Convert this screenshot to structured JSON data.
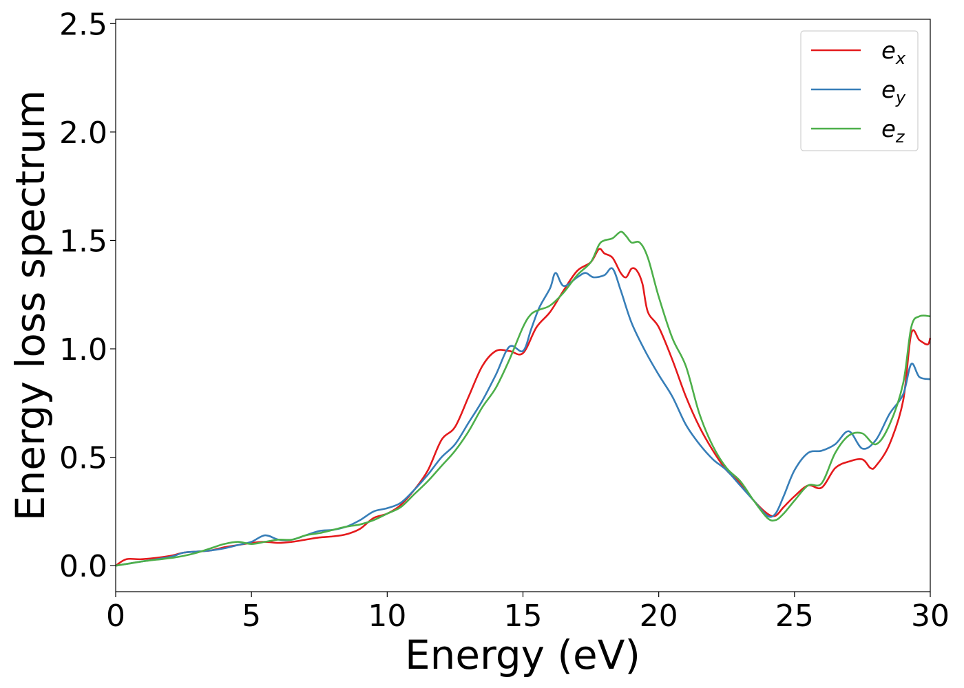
{
  "chart_data": {
    "type": "line",
    "xlabel": "Energy (eV)",
    "ylabel": "Energy loss spectrum",
    "xlim": [
      0,
      30
    ],
    "ylim": [
      -0.12,
      2.52
    ],
    "xticks": [
      "0",
      "5",
      "10",
      "15",
      "20",
      "25",
      "30"
    ],
    "yticks": [
      "0.0",
      "0.5",
      "1.0",
      "1.5",
      "2.0",
      "2.5"
    ],
    "grid": false,
    "legend_position": "top-right",
    "series": [
      {
        "name": "e",
        "subscript": "x",
        "color": "#e41a1c",
        "x": [
          0,
          0.4,
          1,
          2,
          2.5,
          3,
          3.5,
          4,
          4.5,
          5,
          5.5,
          6,
          6.5,
          7,
          7.5,
          8,
          8.5,
          9,
          9.5,
          10,
          10.5,
          11,
          11.5,
          12,
          12.5,
          13,
          13.5,
          14,
          14.5,
          15,
          15.5,
          16,
          16.5,
          17,
          17.5,
          17.8,
          18,
          18.3,
          18.6,
          18.8,
          19,
          19.2,
          19.4,
          19.6,
          20,
          20.5,
          21,
          21.5,
          22,
          22.5,
          23,
          23.5,
          24,
          24.3,
          24.6,
          25,
          25.5,
          26,
          26.5,
          27,
          27.5,
          27.8,
          28,
          28.5,
          29,
          29.3,
          29.6,
          29.9,
          30
        ],
        "values": [
          0.0,
          0.03,
          0.03,
          0.045,
          0.06,
          0.065,
          0.07,
          0.085,
          0.095,
          0.105,
          0.11,
          0.105,
          0.11,
          0.12,
          0.13,
          0.135,
          0.145,
          0.17,
          0.22,
          0.24,
          0.28,
          0.35,
          0.44,
          0.58,
          0.64,
          0.78,
          0.92,
          0.99,
          0.99,
          0.98,
          1.1,
          1.17,
          1.27,
          1.36,
          1.4,
          1.46,
          1.44,
          1.42,
          1.35,
          1.33,
          1.37,
          1.36,
          1.3,
          1.17,
          1.1,
          0.95,
          0.78,
          0.64,
          0.53,
          0.44,
          0.38,
          0.3,
          0.24,
          0.23,
          0.27,
          0.32,
          0.37,
          0.36,
          0.45,
          0.48,
          0.49,
          0.45,
          0.46,
          0.56,
          0.76,
          1.07,
          1.04,
          1.02,
          1.05
        ]
      },
      {
        "name": "e",
        "subscript": "y",
        "color": "#377eb8",
        "x": [
          0,
          0.5,
          1,
          2,
          2.5,
          3,
          3.5,
          4,
          4.5,
          5,
          5.5,
          6,
          6.5,
          7,
          7.5,
          8,
          8.5,
          9,
          9.5,
          10,
          10.5,
          11,
          11.5,
          12,
          12.5,
          13,
          13.5,
          14,
          14.5,
          15,
          15.3,
          15.6,
          16,
          16.2,
          16.5,
          17,
          17.3,
          17.6,
          18,
          18.3,
          18.6,
          19,
          19.5,
          20,
          20.5,
          21,
          21.5,
          22,
          22.5,
          23,
          23.5,
          24,
          24.3,
          24.6,
          25,
          25.5,
          26,
          26.5,
          27,
          27.5,
          28,
          28.5,
          29,
          29.3,
          29.6,
          30
        ],
        "values": [
          0.0,
          0.01,
          0.02,
          0.04,
          0.06,
          0.065,
          0.07,
          0.08,
          0.095,
          0.11,
          0.14,
          0.12,
          0.12,
          0.14,
          0.16,
          0.165,
          0.18,
          0.21,
          0.25,
          0.265,
          0.29,
          0.35,
          0.42,
          0.5,
          0.56,
          0.66,
          0.76,
          0.88,
          1.01,
          0.99,
          1.09,
          1.19,
          1.28,
          1.35,
          1.29,
          1.33,
          1.35,
          1.33,
          1.34,
          1.37,
          1.27,
          1.12,
          0.99,
          0.88,
          0.78,
          0.65,
          0.56,
          0.49,
          0.44,
          0.37,
          0.3,
          0.23,
          0.24,
          0.32,
          0.44,
          0.52,
          0.53,
          0.56,
          0.62,
          0.54,
          0.58,
          0.7,
          0.79,
          0.93,
          0.87,
          0.86
        ]
      },
      {
        "name": "e",
        "subscript": "z",
        "color": "#4daf4a",
        "x": [
          0,
          0.5,
          1,
          2,
          2.5,
          3,
          3.5,
          4,
          4.5,
          5,
          5.5,
          6,
          6.5,
          7,
          7.5,
          8,
          8.5,
          9,
          9.5,
          10,
          10.5,
          11,
          11.5,
          12,
          12.5,
          13,
          13.5,
          14,
          14.5,
          15,
          15.3,
          15.6,
          16,
          16.5,
          17,
          17.5,
          17.8,
          18,
          18.3,
          18.6,
          18.8,
          19,
          19.3,
          19.6,
          20,
          20.5,
          21,
          21.5,
          22,
          22.5,
          23,
          23.5,
          24,
          24.3,
          24.6,
          25,
          25.5,
          26,
          26.5,
          27,
          27.5,
          28,
          28.5,
          29,
          29.3,
          29.6,
          30
        ],
        "values": [
          0.0,
          0.01,
          0.02,
          0.035,
          0.045,
          0.06,
          0.08,
          0.1,
          0.11,
          0.1,
          0.11,
          0.12,
          0.12,
          0.14,
          0.15,
          0.165,
          0.18,
          0.19,
          0.21,
          0.24,
          0.27,
          0.33,
          0.39,
          0.46,
          0.53,
          0.62,
          0.73,
          0.82,
          0.95,
          1.1,
          1.16,
          1.18,
          1.2,
          1.26,
          1.34,
          1.4,
          1.48,
          1.5,
          1.51,
          1.54,
          1.52,
          1.49,
          1.49,
          1.42,
          1.24,
          1.05,
          0.92,
          0.7,
          0.55,
          0.45,
          0.39,
          0.3,
          0.22,
          0.21,
          0.24,
          0.3,
          0.37,
          0.38,
          0.52,
          0.6,
          0.61,
          0.56,
          0.65,
          0.84,
          1.1,
          1.15,
          1.15
        ]
      }
    ]
  }
}
